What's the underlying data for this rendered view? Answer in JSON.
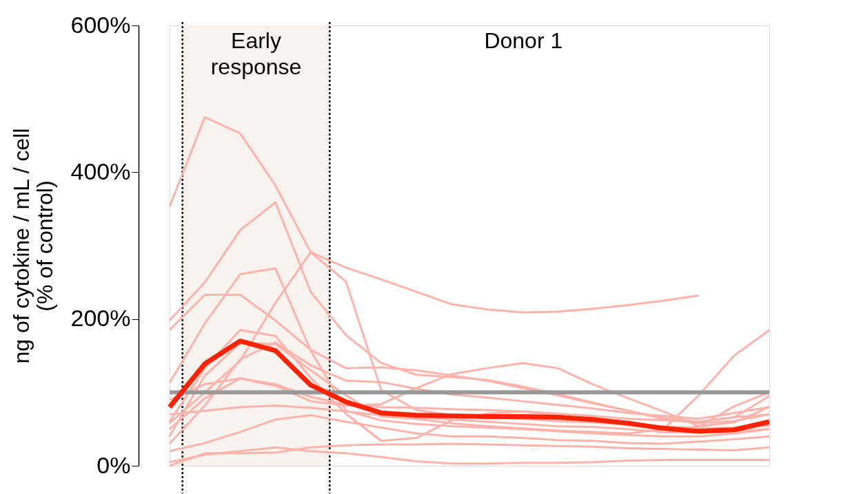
{
  "chart_data": {
    "type": "line",
    "ylabel": "ng of cytokine / mL / cell\n(% of control)",
    "annotations": [
      "Early response",
      "Donor 1"
    ],
    "categories": [
      null,
      null,
      null,
      null,
      null,
      null,
      null,
      null,
      null,
      null,
      null,
      null,
      null,
      null,
      null,
      null,
      null,
      null
    ],
    "ylim": [
      0,
      600
    ],
    "yticks": [
      {
        "value": 0,
        "label": "0%"
      },
      {
        "value": 200,
        "label": "200%"
      },
      {
        "value": 400,
        "label": "400%"
      },
      {
        "value": 600,
        "label": "600%"
      }
    ],
    "tick_labels": "y",
    "grid": false,
    "line_style": "solid",
    "marker": "none",
    "ref_lines": [
      {
        "axis": "y",
        "value": 100,
        "color": "#999999",
        "line_style": "solid"
      }
    ],
    "series": [
      {
        "color": "#ffb3ab",
        "values": [
          353,
          475,
          453,
          382,
          291,
          270,
          254,
          237,
          220,
          213,
          209,
          210,
          214,
          219,
          225,
          232,
          null,
          null
        ]
      },
      {
        "color": "#ffb3ab",
        "values": [
          198,
          250,
          321,
          359,
          237,
          178,
          140,
          124,
          121,
          117,
          108,
          98,
          86,
          75,
          65,
          60,
          66,
          95
        ]
      },
      {
        "color": "#ffb3ab",
        "values": [
          113,
          194,
          261,
          269,
          157,
          75,
          62,
          57,
          54,
          52,
          50,
          47,
          44,
          42,
          40,
          40,
          44,
          50
        ]
      },
      {
        "color": "#ffb3ab",
        "values": [
          58,
          100,
          143,
          222,
          291,
          251,
          103,
          76,
          69,
          66,
          64,
          61,
          59,
          56,
          54,
          51,
          52,
          55
        ]
      },
      {
        "color": "#ffb3ab",
        "values": [
          185,
          233,
          233,
          198,
          158,
          133,
          134,
          130,
          123,
          116,
          106,
          96,
          85,
          75,
          64,
          58,
          61,
          70
        ]
      },
      {
        "color": "#ffb3ab",
        "values": [
          50,
          92,
          119,
          109,
          88,
          82,
          84,
          106,
          125,
          133,
          140,
          133,
          111,
          92,
          74,
          54,
          59,
          80
        ]
      },
      {
        "color": "#ffb3ab",
        "values": [
          40,
          123,
          167,
          166,
          130,
          96,
          67,
          64,
          58,
          54,
          51,
          48,
          46,
          44,
          50,
          96,
          150,
          185
        ]
      },
      {
        "color": "#ffb3ab",
        "values": [
          0,
          17,
          17,
          18,
          25,
          28,
          29,
          29,
          30,
          29,
          28,
          27,
          26,
          24,
          23,
          22,
          21,
          25
        ]
      },
      {
        "color": "#ffb3ab",
        "values": [
          5,
          15,
          20,
          25,
          20,
          17,
          12,
          6,
          3,
          3,
          4,
          4,
          5,
          7,
          8,
          8,
          8,
          8
        ]
      },
      {
        "color": "#ffb3ab",
        "values": [
          20,
          31,
          46,
          63,
          69,
          60,
          52,
          44,
          40,
          40,
          38,
          35,
          34,
          31,
          30,
          33,
          36,
          40
        ]
      },
      {
        "color": "#ffb3ab",
        "values": [
          70,
          75,
          80,
          82,
          79,
          74,
          69,
          66,
          63,
          60,
          57,
          54,
          53,
          50,
          46,
          45,
          47,
          50
        ]
      },
      {
        "color": "#ffb3ab",
        "values": [
          60,
          133,
          185,
          177,
          120,
          71,
          34,
          38,
          62,
          71,
          74,
          69,
          63,
          55,
          51,
          53,
          81,
          100
        ]
      },
      {
        "color": "#ffb3ab",
        "values": [
          30,
          82,
          145,
          168,
          137,
          116,
          114,
          105,
          97,
          93,
          88,
          83,
          78,
          72,
          68,
          64,
          72,
          80
        ]
      },
      {
        "color": "#ffb3ab",
        "values": [
          90,
          111,
          119,
          111,
          94,
          83,
          80,
          79,
          77,
          76,
          74,
          71,
          68,
          64,
          62,
          60,
          66,
          70
        ]
      },
      {
        "color": "#ff2200",
        "values": [
          80,
          139,
          170,
          157,
          110,
          87,
          72,
          69,
          68,
          67,
          67,
          66,
          63,
          58,
          51,
          47,
          49,
          60
        ]
      }
    ]
  }
}
